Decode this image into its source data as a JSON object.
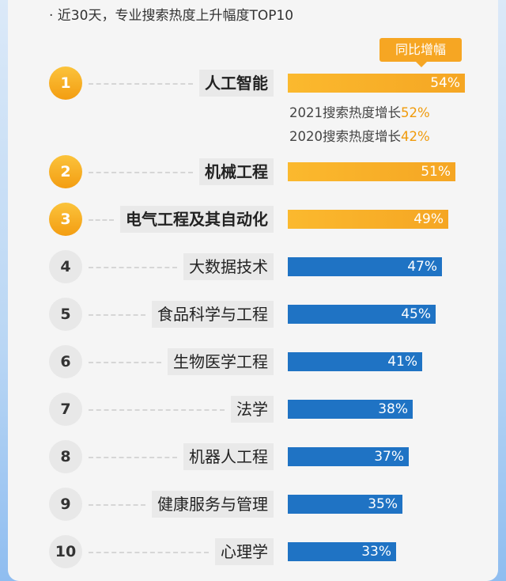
{
  "header": {
    "subtitle": "· 近30天，专业搜索热度上升幅度TOP10",
    "legend_label": "同比增幅"
  },
  "colors": {
    "top3": "#f5a623",
    "rest": "#1f73c4"
  },
  "chart_data": {
    "type": "bar",
    "orientation": "horizontal",
    "title": "近30天，专业搜索热度上升幅度TOP10",
    "categories": [
      "人工智能",
      "机械工程",
      "电气工程及其自动化",
      "大数据技术",
      "食品科学与工程",
      "生物医学工程",
      "法学",
      "机器人工程",
      "健康服务与管理",
      "心理学"
    ],
    "ranks": [
      "1",
      "2",
      "3",
      "4",
      "5",
      "6",
      "7",
      "8",
      "9",
      "10"
    ],
    "series": [
      {
        "name": "同比增幅",
        "values": [
          54,
          51,
          49,
          47,
          45,
          41,
          38,
          37,
          35,
          33
        ]
      }
    ],
    "value_labels": [
      "54%",
      "51%",
      "49%",
      "47%",
      "45%",
      "41%",
      "38%",
      "37%",
      "35%",
      "33%"
    ],
    "annotations": [
      {
        "text": "2021搜索热度增长",
        "value": "52%"
      },
      {
        "text": "2020搜索热度增长",
        "value": "42%"
      }
    ]
  }
}
